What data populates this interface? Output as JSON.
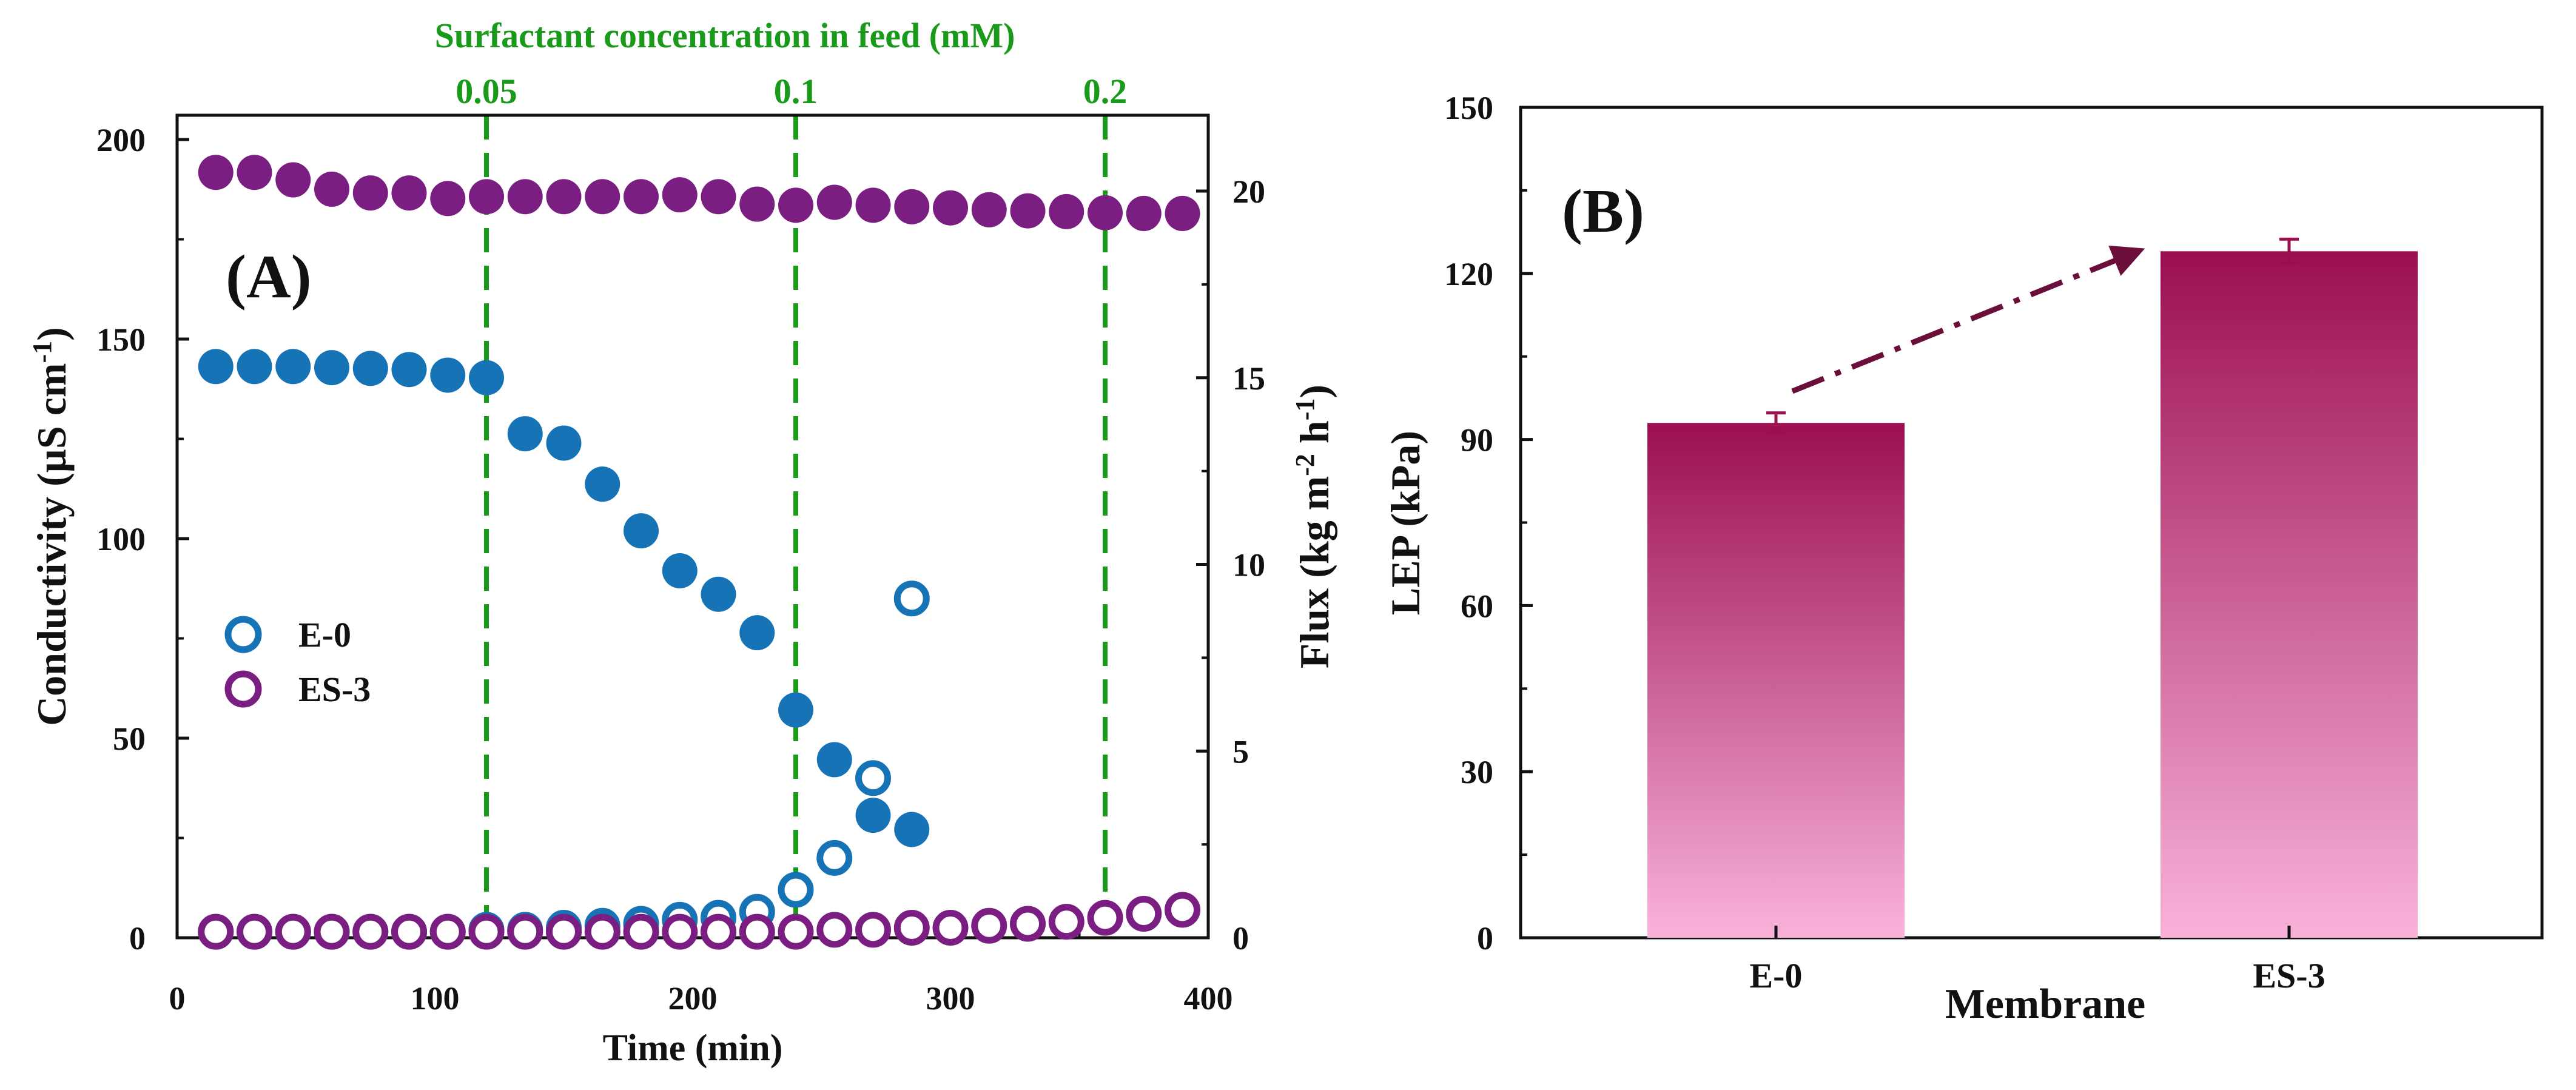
{
  "colors": {
    "e0": "#1673b5",
    "es3": "#7a1e82",
    "guide": "#1a9a1a",
    "bar_top": "#9b0f50",
    "bar_bottom": "#f9b2da",
    "arrow": "#6b0f3a"
  },
  "chart_data": [
    {
      "panel": "A",
      "type": "scatter",
      "panel_label": "(A)",
      "xlabel": "Time (min)",
      "ylabel": "Conductivity (µS cm",
      "ylabel_sup": "-1",
      "y2label_parts": [
        "Flux (kg m",
        "-2",
        " h",
        "-1",
        ")"
      ],
      "top_axis_label": "Surfactant concentration in feed  (mM)",
      "xlim": [
        0,
        400
      ],
      "ylim": [
        0,
        200
      ],
      "y2lim": [
        0,
        21.7
      ],
      "xticks": [
        0,
        100,
        200,
        300,
        400
      ],
      "yticks": [
        0,
        50,
        100,
        150,
        200
      ],
      "y2ticks": [
        0,
        5,
        10,
        15,
        20
      ],
      "concentration_markers": [
        {
          "label": "0.05",
          "time": 120
        },
        {
          "label": "0.1",
          "time": 240
        },
        {
          "label": "0.2",
          "time": 360
        }
      ],
      "legend": [
        {
          "label": "E-0",
          "series": "E-0"
        },
        {
          "label": "ES-3",
          "series": "ES-3"
        }
      ],
      "series": [
        {
          "name": "E-0",
          "kind": "conductivity",
          "axis": "left",
          "marker": "open",
          "x": [
            15,
            30,
            45,
            60,
            75,
            90,
            105,
            120,
            135,
            150,
            165,
            180,
            195,
            210,
            225,
            240,
            255,
            270,
            285
          ],
          "y": [
            1.5,
            1.5,
            1.5,
            1.5,
            1.5,
            1.5,
            1.5,
            2,
            2,
            2.5,
            3,
            3.5,
            4.5,
            5,
            6.5,
            12,
            20,
            40,
            85
          ]
        },
        {
          "name": "E-0",
          "kind": "flux",
          "axis": "right",
          "marker": "filled",
          "x": [
            15,
            30,
            45,
            60,
            75,
            90,
            105,
            120,
            135,
            150,
            165,
            180,
            195,
            210,
            225,
            240,
            255,
            270,
            285
          ],
          "y": [
            15.3,
            15.3,
            15.3,
            15.27,
            15.25,
            15.22,
            15.07,
            15.0,
            13.5,
            13.25,
            12.15,
            10.9,
            9.83,
            9.2,
            8.17,
            6.1,
            4.77,
            3.28,
            2.9
          ]
        },
        {
          "name": "ES-3",
          "kind": "conductivity",
          "axis": "left",
          "marker": "open",
          "x": [
            15,
            30,
            45,
            60,
            75,
            90,
            105,
            120,
            135,
            150,
            165,
            180,
            195,
            210,
            225,
            240,
            255,
            270,
            285,
            300,
            315,
            330,
            345,
            360,
            375,
            390
          ],
          "y": [
            1.5,
            1.5,
            1.5,
            1.5,
            1.5,
            1.5,
            1.5,
            1.5,
            1.5,
            1.5,
            1.5,
            1.5,
            1.5,
            1.5,
            1.5,
            1.5,
            2,
            2,
            2.5,
            2.5,
            3,
            3.5,
            4,
            5,
            6,
            7
          ]
        },
        {
          "name": "ES-3",
          "kind": "flux",
          "axis": "right",
          "marker": "filled",
          "x": [
            15,
            30,
            45,
            60,
            75,
            90,
            105,
            120,
            135,
            150,
            165,
            180,
            195,
            210,
            225,
            240,
            255,
            270,
            285,
            300,
            315,
            330,
            345,
            360,
            375,
            390
          ],
          "y": [
            20.5,
            20.5,
            20.3,
            20.05,
            19.95,
            19.95,
            19.8,
            19.85,
            19.85,
            19.85,
            19.85,
            19.85,
            19.9,
            19.85,
            19.65,
            19.62,
            19.7,
            19.62,
            19.58,
            19.55,
            19.5,
            19.47,
            19.45,
            19.42,
            19.4,
            19.4
          ]
        }
      ]
    },
    {
      "panel": "B",
      "type": "bar",
      "panel_label": "(B)",
      "xlabel": "Membrane",
      "ylabel": "LEP (kPa)",
      "ylim": [
        0,
        150
      ],
      "yticks": [
        0,
        30,
        60,
        90,
        120,
        150
      ],
      "categories": [
        "E-0",
        "ES-3"
      ],
      "values": [
        93,
        124
      ],
      "errors": [
        1.8,
        2.2
      ]
    }
  ]
}
